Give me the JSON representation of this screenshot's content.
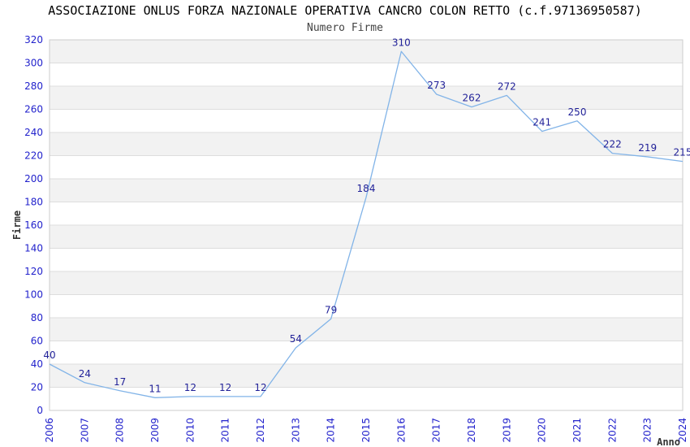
{
  "chart_data": {
    "type": "line",
    "title": "ASSOCIAZIONE ONLUS FORZA NAZIONALE OPERATIVA CANCRO COLON RETTO (c.f.97136950587)",
    "subtitle": "Numero Firme",
    "xlabel": "Anno",
    "ylabel": "Firme",
    "x": [
      "2006",
      "2007",
      "2008",
      "2009",
      "2010",
      "2011",
      "2012",
      "2013",
      "2014",
      "2015",
      "2016",
      "2017",
      "2018",
      "2019",
      "2020",
      "2021",
      "2022",
      "2023",
      "2024"
    ],
    "values": [
      40,
      24,
      17,
      11,
      12,
      12,
      12,
      54,
      79,
      184,
      310,
      273,
      262,
      272,
      241,
      250,
      222,
      219,
      215
    ],
    "ylim": [
      0,
      320
    ],
    "ytick_step": 20,
    "grid": "horizontal-bands",
    "legend": "none",
    "point_labels_visible": true,
    "colors": {
      "line": "#82B4E8",
      "point_label": "#222299",
      "tick_label": "#2222CC",
      "axis_label": "#333333",
      "band_gray": "#F2F2F2",
      "band_white": "#FFFFFF",
      "gridline": "#DDDDDD",
      "border": "#CCCCCC",
      "title": "#000000",
      "subtitle": "#444444"
    }
  }
}
